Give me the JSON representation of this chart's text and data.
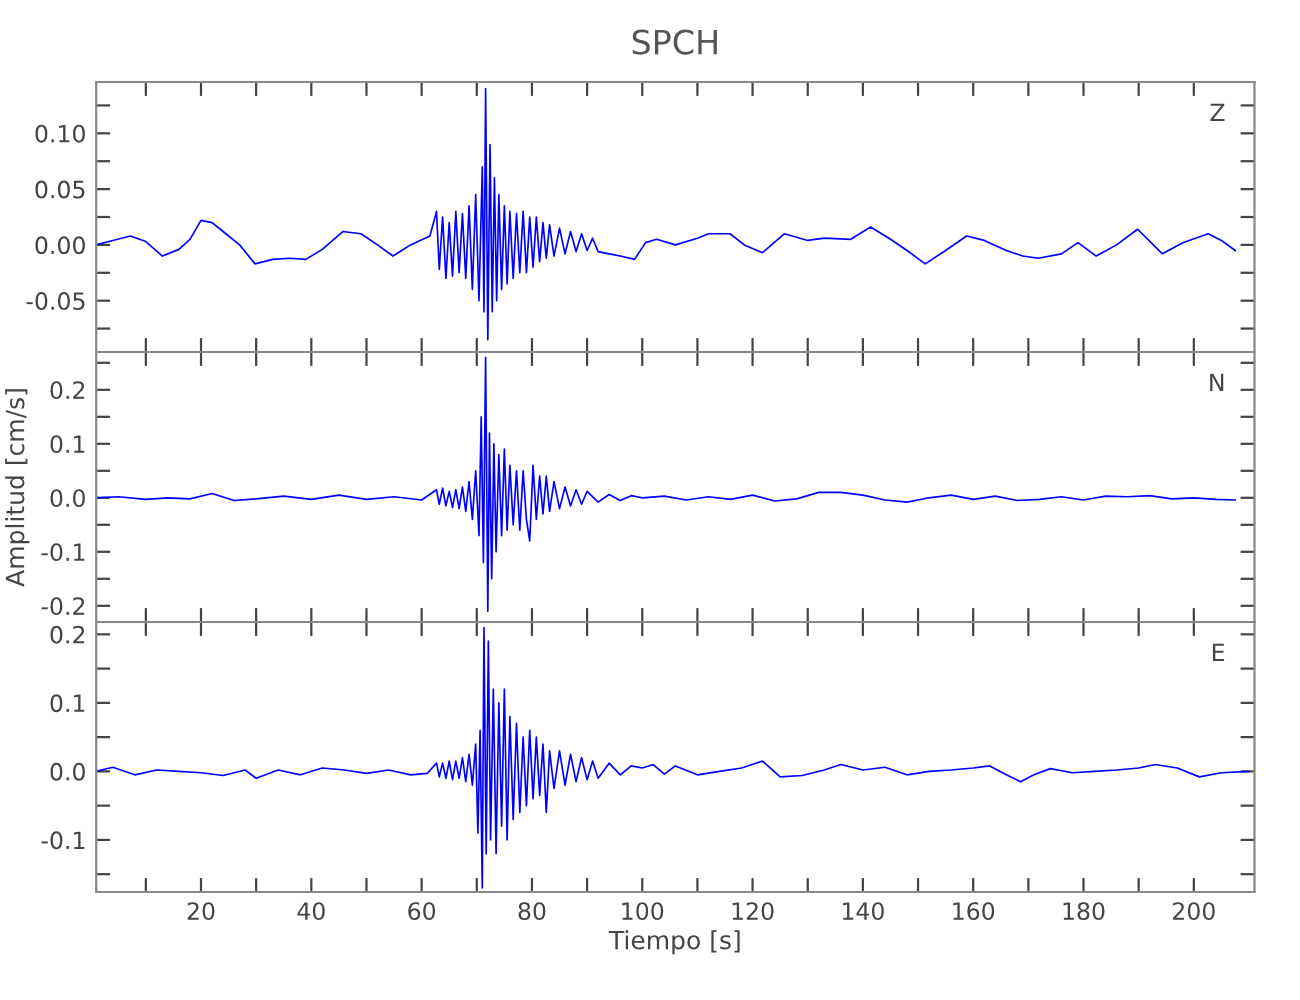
{
  "chart_data": [
    {
      "type": "line",
      "title": "SPCH",
      "annotations": [
        "Z"
      ],
      "tick_labels": "y",
      "grid": false,
      "marker": "none",
      "line_style": "solid",
      "xlim": [
        1,
        211
      ],
      "xticks": [
        {
          "value": 10,
          "label": null
        },
        {
          "value": 20,
          "label": null
        },
        {
          "value": 30,
          "label": null
        },
        {
          "value": 40,
          "label": null
        },
        {
          "value": 50,
          "label": null
        },
        {
          "value": 60,
          "label": null
        },
        {
          "value": 70,
          "label": null
        },
        {
          "value": 80,
          "label": null
        },
        {
          "value": 90,
          "label": null
        },
        {
          "value": 100,
          "label": null
        },
        {
          "value": 110,
          "label": null
        },
        {
          "value": 120,
          "label": null
        },
        {
          "value": 130,
          "label": null
        },
        {
          "value": 140,
          "label": null
        },
        {
          "value": 150,
          "label": null
        },
        {
          "value": 160,
          "label": null
        },
        {
          "value": 170,
          "label": null
        },
        {
          "value": 180,
          "label": null
        },
        {
          "value": 190,
          "label": null
        },
        {
          "value": 200,
          "label": null
        }
      ],
      "ylim": [
        -0.096,
        0.146
      ],
      "yticks": [
        {
          "value": -0.075,
          "label": null
        },
        {
          "value": -0.05,
          "label": "-0.05"
        },
        {
          "value": -0.025,
          "label": null
        },
        {
          "value": 0,
          "label": "0.00"
        },
        {
          "value": 0.025,
          "label": null
        },
        {
          "value": 0.05,
          "label": "0.05"
        },
        {
          "value": 0.075,
          "label": null
        },
        {
          "value": 0.1,
          "label": "0.10"
        },
        {
          "value": 0.125,
          "label": null
        }
      ],
      "series": [
        {
          "color": "#0000ff",
          "x": [
            1,
            4,
            7.2,
            10,
            13,
            16,
            18,
            20,
            22,
            24,
            27,
            29.8,
            33,
            36,
            39,
            42,
            45.7,
            49,
            52,
            54.8,
            58,
            61.5,
            62.7,
            63.2,
            63.8,
            64.4,
            65,
            65.6,
            66.2,
            66.8,
            67.4,
            68,
            68.6,
            69.2,
            69.8,
            70.4,
            71,
            71.3,
            71.6,
            72,
            72.4,
            72.8,
            73.2,
            73.6,
            74,
            74.5,
            75,
            75.5,
            76,
            76.6,
            77.2,
            77.8,
            78.4,
            79,
            79.6,
            80.2,
            80.8,
            81.4,
            82,
            82.6,
            83.2,
            84,
            85,
            86,
            87,
            88,
            89,
            90,
            91,
            92,
            94,
            96,
            98.6,
            100.6,
            102.6,
            106,
            110,
            112,
            115.9,
            118.5,
            121.8,
            125.8,
            130,
            133,
            137.8,
            141.4,
            145,
            148,
            151.3,
            155,
            158.8,
            162,
            166,
            169,
            171.8,
            176,
            179,
            182.3,
            186,
            189.8,
            194.3,
            198,
            202.6,
            205,
            207.5
          ],
          "values": [
            0.0,
            0.004,
            0.008,
            0.003,
            -0.01,
            -0.004,
            0.005,
            0.022,
            0.02,
            0.012,
            0.0,
            -0.017,
            -0.013,
            -0.012,
            -0.013,
            -0.004,
            0.012,
            0.01,
            0.0,
            -0.01,
            0.0,
            0.008,
            0.03,
            -0.022,
            0.025,
            -0.03,
            0.02,
            -0.028,
            0.03,
            -0.025,
            0.028,
            -0.03,
            0.035,
            -0.04,
            0.045,
            -0.05,
            0.07,
            -0.06,
            0.14,
            -0.085,
            0.09,
            -0.06,
            0.06,
            -0.05,
            0.045,
            -0.04,
            0.035,
            -0.035,
            0.03,
            -0.03,
            0.028,
            -0.025,
            0.03,
            -0.025,
            0.025,
            -0.02,
            0.025,
            -0.015,
            0.02,
            -0.012,
            0.018,
            -0.01,
            0.015,
            -0.008,
            0.012,
            -0.006,
            0.01,
            -0.005,
            0.006,
            -0.006,
            -0.008,
            -0.01,
            -0.013,
            0.002,
            0.005,
            0.0,
            0.006,
            0.01,
            0.01,
            0.0,
            -0.007,
            0.01,
            0.004,
            0.006,
            0.005,
            0.016,
            0.005,
            -0.005,
            -0.017,
            -0.005,
            0.008,
            0.004,
            -0.005,
            -0.01,
            -0.012,
            -0.008,
            0.002,
            -0.01,
            0.0,
            0.014,
            -0.008,
            0.002,
            0.01,
            0.004,
            -0.005
          ]
        }
      ]
    },
    {
      "type": "line",
      "ylabel": "Amplitud [cm/s]",
      "annotations": [
        "N"
      ],
      "tick_labels": "y",
      "grid": false,
      "marker": "none",
      "line_style": "solid",
      "xlim": [
        1,
        211
      ],
      "xticks": [
        {
          "value": 10,
          "label": null
        },
        {
          "value": 20,
          "label": null
        },
        {
          "value": 30,
          "label": null
        },
        {
          "value": 40,
          "label": null
        },
        {
          "value": 50,
          "label": null
        },
        {
          "value": 60,
          "label": null
        },
        {
          "value": 70,
          "label": null
        },
        {
          "value": 80,
          "label": null
        },
        {
          "value": 90,
          "label": null
        },
        {
          "value": 100,
          "label": null
        },
        {
          "value": 110,
          "label": null
        },
        {
          "value": 120,
          "label": null
        },
        {
          "value": 130,
          "label": null
        },
        {
          "value": 140,
          "label": null
        },
        {
          "value": 150,
          "label": null
        },
        {
          "value": 160,
          "label": null
        },
        {
          "value": 170,
          "label": null
        },
        {
          "value": 180,
          "label": null
        },
        {
          "value": 190,
          "label": null
        },
        {
          "value": 200,
          "label": null
        }
      ],
      "ylim": [
        -0.23,
        0.27
      ],
      "yticks": [
        {
          "value": -0.2,
          "label": "-0.2"
        },
        {
          "value": -0.15,
          "label": null
        },
        {
          "value": -0.1,
          "label": "-0.1"
        },
        {
          "value": -0.05,
          "label": null
        },
        {
          "value": 0,
          "label": "0.0"
        },
        {
          "value": 0.05,
          "label": null
        },
        {
          "value": 0.1,
          "label": "0.1"
        },
        {
          "value": 0.15,
          "label": null
        },
        {
          "value": 0.2,
          "label": "0.2"
        },
        {
          "value": 0.25,
          "label": null
        }
      ],
      "series": [
        {
          "color": "#0000ff",
          "x": [
            1,
            5,
            10,
            14,
            18,
            22,
            26,
            30,
            35,
            40,
            45,
            50,
            55,
            60,
            62.7,
            63.2,
            63.8,
            64.4,
            65,
            65.6,
            66.2,
            66.8,
            67.4,
            68,
            68.6,
            69.2,
            69.8,
            70.4,
            70.8,
            71.2,
            71.6,
            72,
            72.3,
            72.7,
            73.1,
            73.5,
            74,
            74.5,
            75,
            75.5,
            76,
            76.6,
            77.2,
            77.8,
            78.4,
            79,
            79.6,
            80.2,
            80.8,
            81.4,
            82,
            82.6,
            83.2,
            84,
            85,
            86,
            87,
            88,
            89,
            90,
            92,
            94,
            96,
            98,
            100,
            104,
            108,
            112,
            116,
            120,
            124,
            128,
            132,
            136,
            140,
            144,
            148,
            152,
            156,
            160,
            164,
            168,
            172,
            176,
            180,
            184,
            188,
            192,
            196,
            200,
            204,
            207.5
          ],
          "values": [
            0.0,
            0.002,
            -0.003,
            0.0,
            -0.002,
            0.008,
            -0.005,
            -0.002,
            0.003,
            -0.003,
            0.005,
            -0.003,
            0.002,
            -0.004,
            0.015,
            -0.012,
            0.018,
            -0.015,
            0.012,
            -0.018,
            0.015,
            -0.02,
            0.02,
            -0.025,
            0.03,
            -0.04,
            0.05,
            -0.07,
            0.15,
            -0.12,
            0.26,
            -0.21,
            0.12,
            -0.15,
            0.1,
            -0.1,
            0.08,
            -0.07,
            0.09,
            -0.06,
            0.06,
            -0.05,
            0.05,
            -0.06,
            0.05,
            -0.04,
            -0.08,
            0.06,
            -0.04,
            0.04,
            -0.03,
            0.04,
            -0.025,
            0.03,
            -0.02,
            0.02,
            -0.015,
            0.015,
            -0.012,
            0.012,
            -0.008,
            0.006,
            -0.005,
            0.004,
            0.0,
            0.003,
            -0.004,
            0.002,
            -0.003,
            0.005,
            -0.006,
            -0.002,
            0.01,
            0.01,
            0.005,
            -0.004,
            -0.008,
            0.0,
            0.005,
            -0.003,
            0.003,
            -0.005,
            -0.003,
            0.002,
            -0.004,
            0.003,
            0.002,
            0.004,
            -0.002,
            0.0,
            -0.003,
            -0.004
          ]
        }
      ]
    },
    {
      "type": "line",
      "xlabel": "Tiempo [s]",
      "annotations": [
        "E"
      ],
      "grid": false,
      "marker": "none",
      "line_style": "solid",
      "xlim": [
        1,
        211
      ],
      "xticks": [
        {
          "value": 10,
          "label": null
        },
        20,
        {
          "value": 30,
          "label": null
        },
        40,
        {
          "value": 50,
          "label": null
        },
        60,
        {
          "value": 70,
          "label": null
        },
        80,
        {
          "value": 90,
          "label": null
        },
        100,
        {
          "value": 110,
          "label": null
        },
        120,
        {
          "value": 130,
          "label": null
        },
        140,
        {
          "value": 150,
          "label": null
        },
        160,
        {
          "value": 170,
          "label": null
        },
        180,
        {
          "value": 190,
          "label": null
        },
        200
      ],
      "ylim": [
        -0.176,
        0.218
      ],
      "yticks": [
        {
          "value": -0.15,
          "label": null
        },
        {
          "value": -0.1,
          "label": "-0.1"
        },
        {
          "value": -0.05,
          "label": null
        },
        {
          "value": 0,
          "label": "0.0"
        },
        {
          "value": 0.05,
          "label": null
        },
        {
          "value": 0.1,
          "label": "0.1"
        },
        {
          "value": 0.15,
          "label": null
        },
        {
          "value": 0.2,
          "label": "0.2"
        }
      ],
      "series": [
        {
          "color": "#0000ff",
          "x": [
            1,
            4,
            8,
            12,
            16,
            20,
            24,
            28,
            30,
            34,
            38,
            42,
            46,
            50,
            54,
            58,
            61,
            62.7,
            63.2,
            63.8,
            64.4,
            65,
            65.6,
            66.2,
            66.8,
            67.4,
            68,
            68.6,
            69.2,
            69.8,
            70.2,
            70.6,
            71,
            71.3,
            71.7,
            72.1,
            72.5,
            73,
            73.5,
            74,
            74.5,
            75,
            75.5,
            76,
            76.6,
            77.2,
            77.8,
            78.4,
            79,
            79.6,
            80.2,
            80.8,
            81.4,
            82,
            82.6,
            83.2,
            84,
            85,
            86,
            87,
            88,
            89,
            90,
            91,
            92,
            94,
            96,
            98,
            100,
            102,
            104,
            106,
            110,
            114,
            118,
            121.8,
            125,
            129,
            133,
            136,
            140,
            144,
            148,
            152,
            156,
            160,
            163,
            166,
            168.6,
            171,
            174,
            178,
            182,
            186,
            190,
            193,
            197,
            201,
            205,
            210
          ],
          "values": [
            0.0,
            0.006,
            -0.005,
            0.002,
            0.0,
            -0.002,
            -0.006,
            0.002,
            -0.01,
            0.002,
            -0.005,
            0.005,
            0.002,
            -0.003,
            0.002,
            -0.005,
            -0.003,
            0.012,
            -0.008,
            0.012,
            -0.01,
            0.015,
            -0.012,
            0.015,
            -0.01,
            0.02,
            -0.015,
            0.025,
            -0.02,
            0.04,
            -0.09,
            0.06,
            -0.17,
            0.21,
            -0.12,
            0.19,
            -0.1,
            0.12,
            -0.12,
            0.1,
            -0.08,
            0.12,
            -0.1,
            0.08,
            -0.07,
            0.07,
            -0.06,
            0.05,
            -0.05,
            0.06,
            -0.04,
            0.05,
            -0.035,
            0.04,
            -0.06,
            0.03,
            -0.025,
            0.03,
            -0.02,
            0.025,
            -0.015,
            0.02,
            -0.012,
            0.015,
            -0.01,
            0.012,
            -0.005,
            0.008,
            0.005,
            0.01,
            -0.004,
            0.008,
            -0.005,
            0.0,
            0.005,
            0.015,
            -0.008,
            -0.006,
            0.002,
            0.01,
            0.002,
            0.006,
            -0.005,
            0.0,
            0.002,
            0.005,
            0.008,
            -0.005,
            -0.015,
            -0.005,
            0.004,
            -0.002,
            0.0,
            0.002,
            0.005,
            0.01,
            0.005,
            -0.008,
            -0.002,
            0.0
          ]
        }
      ]
    }
  ]
}
